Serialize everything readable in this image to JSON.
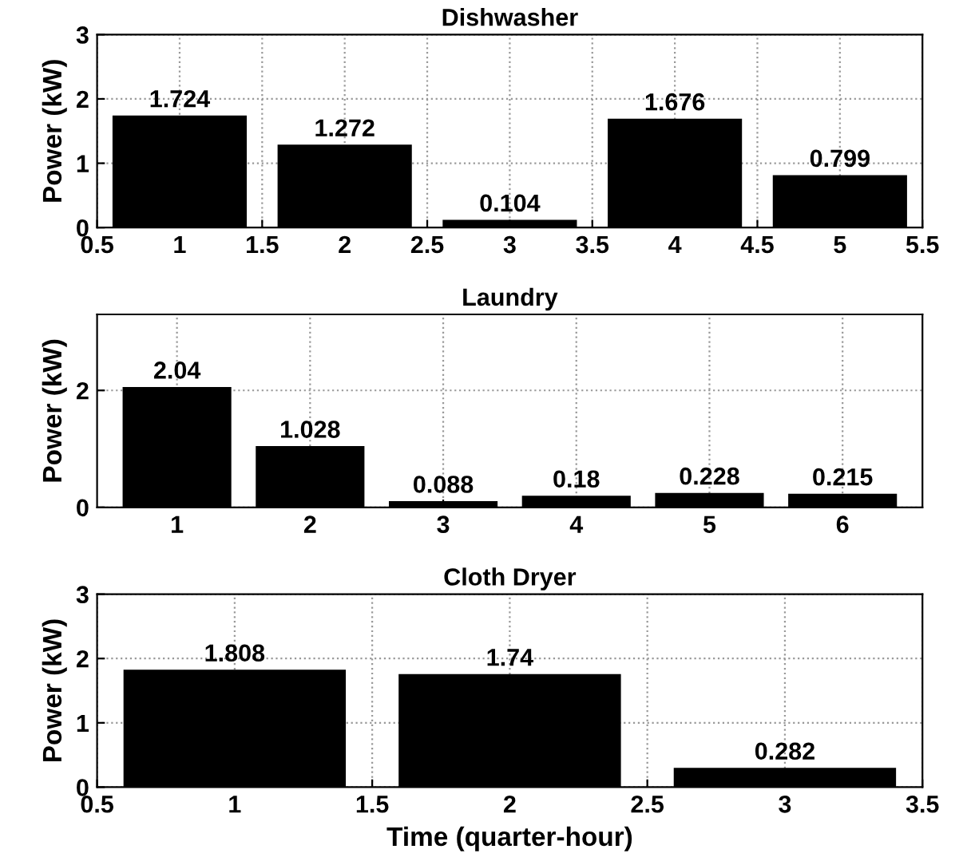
{
  "chart_data": [
    {
      "type": "bar",
      "title": "Dishwasher",
      "ylabel": "Power (kW)",
      "x": [
        1,
        2,
        3,
        4,
        5
      ],
      "values": [
        1.724,
        1.272,
        0.104,
        1.676,
        0.799
      ],
      "color": "#000000",
      "xlim": [
        0.5,
        5.5
      ],
      "xticks": [
        0.5,
        1,
        1.5,
        2,
        2.5,
        3,
        3.5,
        4,
        4.5,
        5,
        5.5
      ],
      "ylim": [
        0,
        3
      ],
      "yticks": [
        0,
        1,
        2,
        3
      ],
      "grid": true,
      "data_labels": true
    },
    {
      "type": "bar",
      "title": "Laundry",
      "ylabel": "Power (kW)",
      "x": [
        1,
        2,
        3,
        4,
        5,
        6
      ],
      "values": [
        2.04,
        1.028,
        0.088,
        0.18,
        0.228,
        0.215
      ],
      "color": "#000000",
      "xlim": [
        0.4,
        6.6
      ],
      "xticks": [
        1,
        2,
        3,
        4,
        5,
        6
      ],
      "ylim": [
        0,
        3.3
      ],
      "yticks": [
        0,
        2
      ],
      "grid": true,
      "data_labels": true
    },
    {
      "type": "bar",
      "title": "Cloth Dryer",
      "ylabel": "Power (kW)",
      "xlabel": "Time (quarter-hour)",
      "x": [
        1,
        2,
        3
      ],
      "values": [
        1.808,
        1.74,
        0.282
      ],
      "color": "#000000",
      "xlim": [
        0.5,
        3.5
      ],
      "xticks": [
        0.5,
        1,
        1.5,
        2,
        2.5,
        3,
        3.5
      ],
      "ylim": [
        0,
        3
      ],
      "yticks": [
        0,
        1,
        2,
        3
      ],
      "grid": true,
      "data_labels": true
    }
  ]
}
